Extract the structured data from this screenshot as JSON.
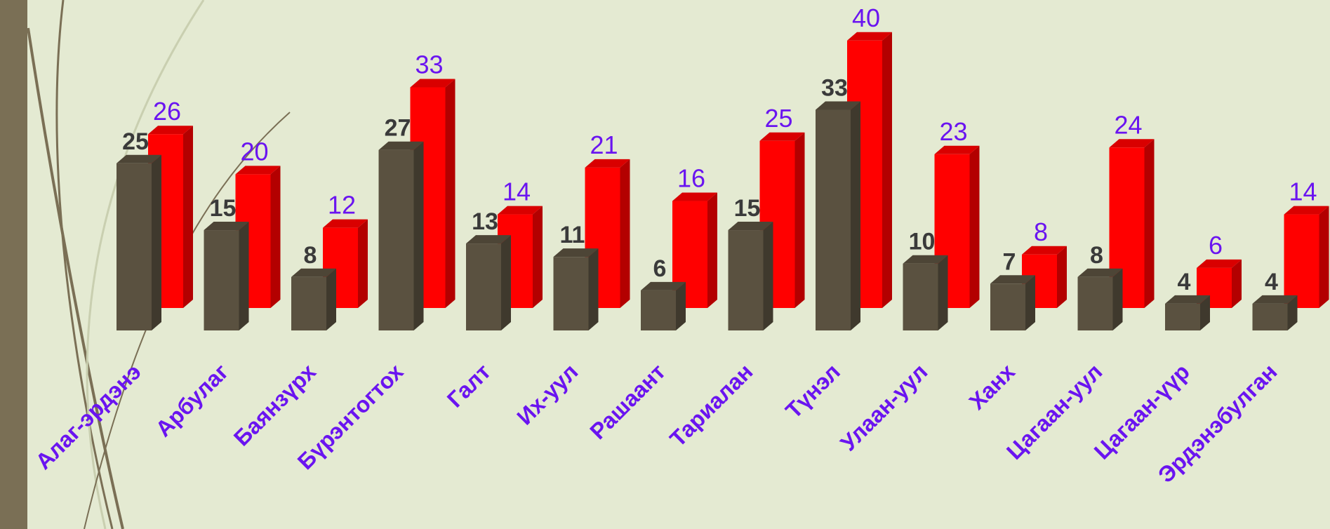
{
  "chart_data": {
    "type": "bar3d",
    "categories": [
      "Алаг-эрдэнэ",
      "Арбулаг",
      "Баянзүрх",
      "Бүрэнтогтох",
      "Галт",
      "Их-уул",
      "Рашаант",
      "Тариалан",
      "Түнэл",
      "Улаан-уул",
      "Ханх",
      "Цагаан-уул",
      "Цагаан-үүр",
      "Эрдэнэбулган"
    ],
    "series": [
      {
        "color": "#5a5140",
        "values": [
          25,
          15,
          8,
          27,
          13,
          11,
          6,
          15,
          33,
          10,
          7,
          8,
          4,
          4
        ]
      },
      {
        "color": "#ff0000",
        "values": [
          26,
          20,
          12,
          33,
          14,
          21,
          16,
          25,
          40,
          23,
          8,
          24,
          6,
          14
        ]
      }
    ]
  }
}
